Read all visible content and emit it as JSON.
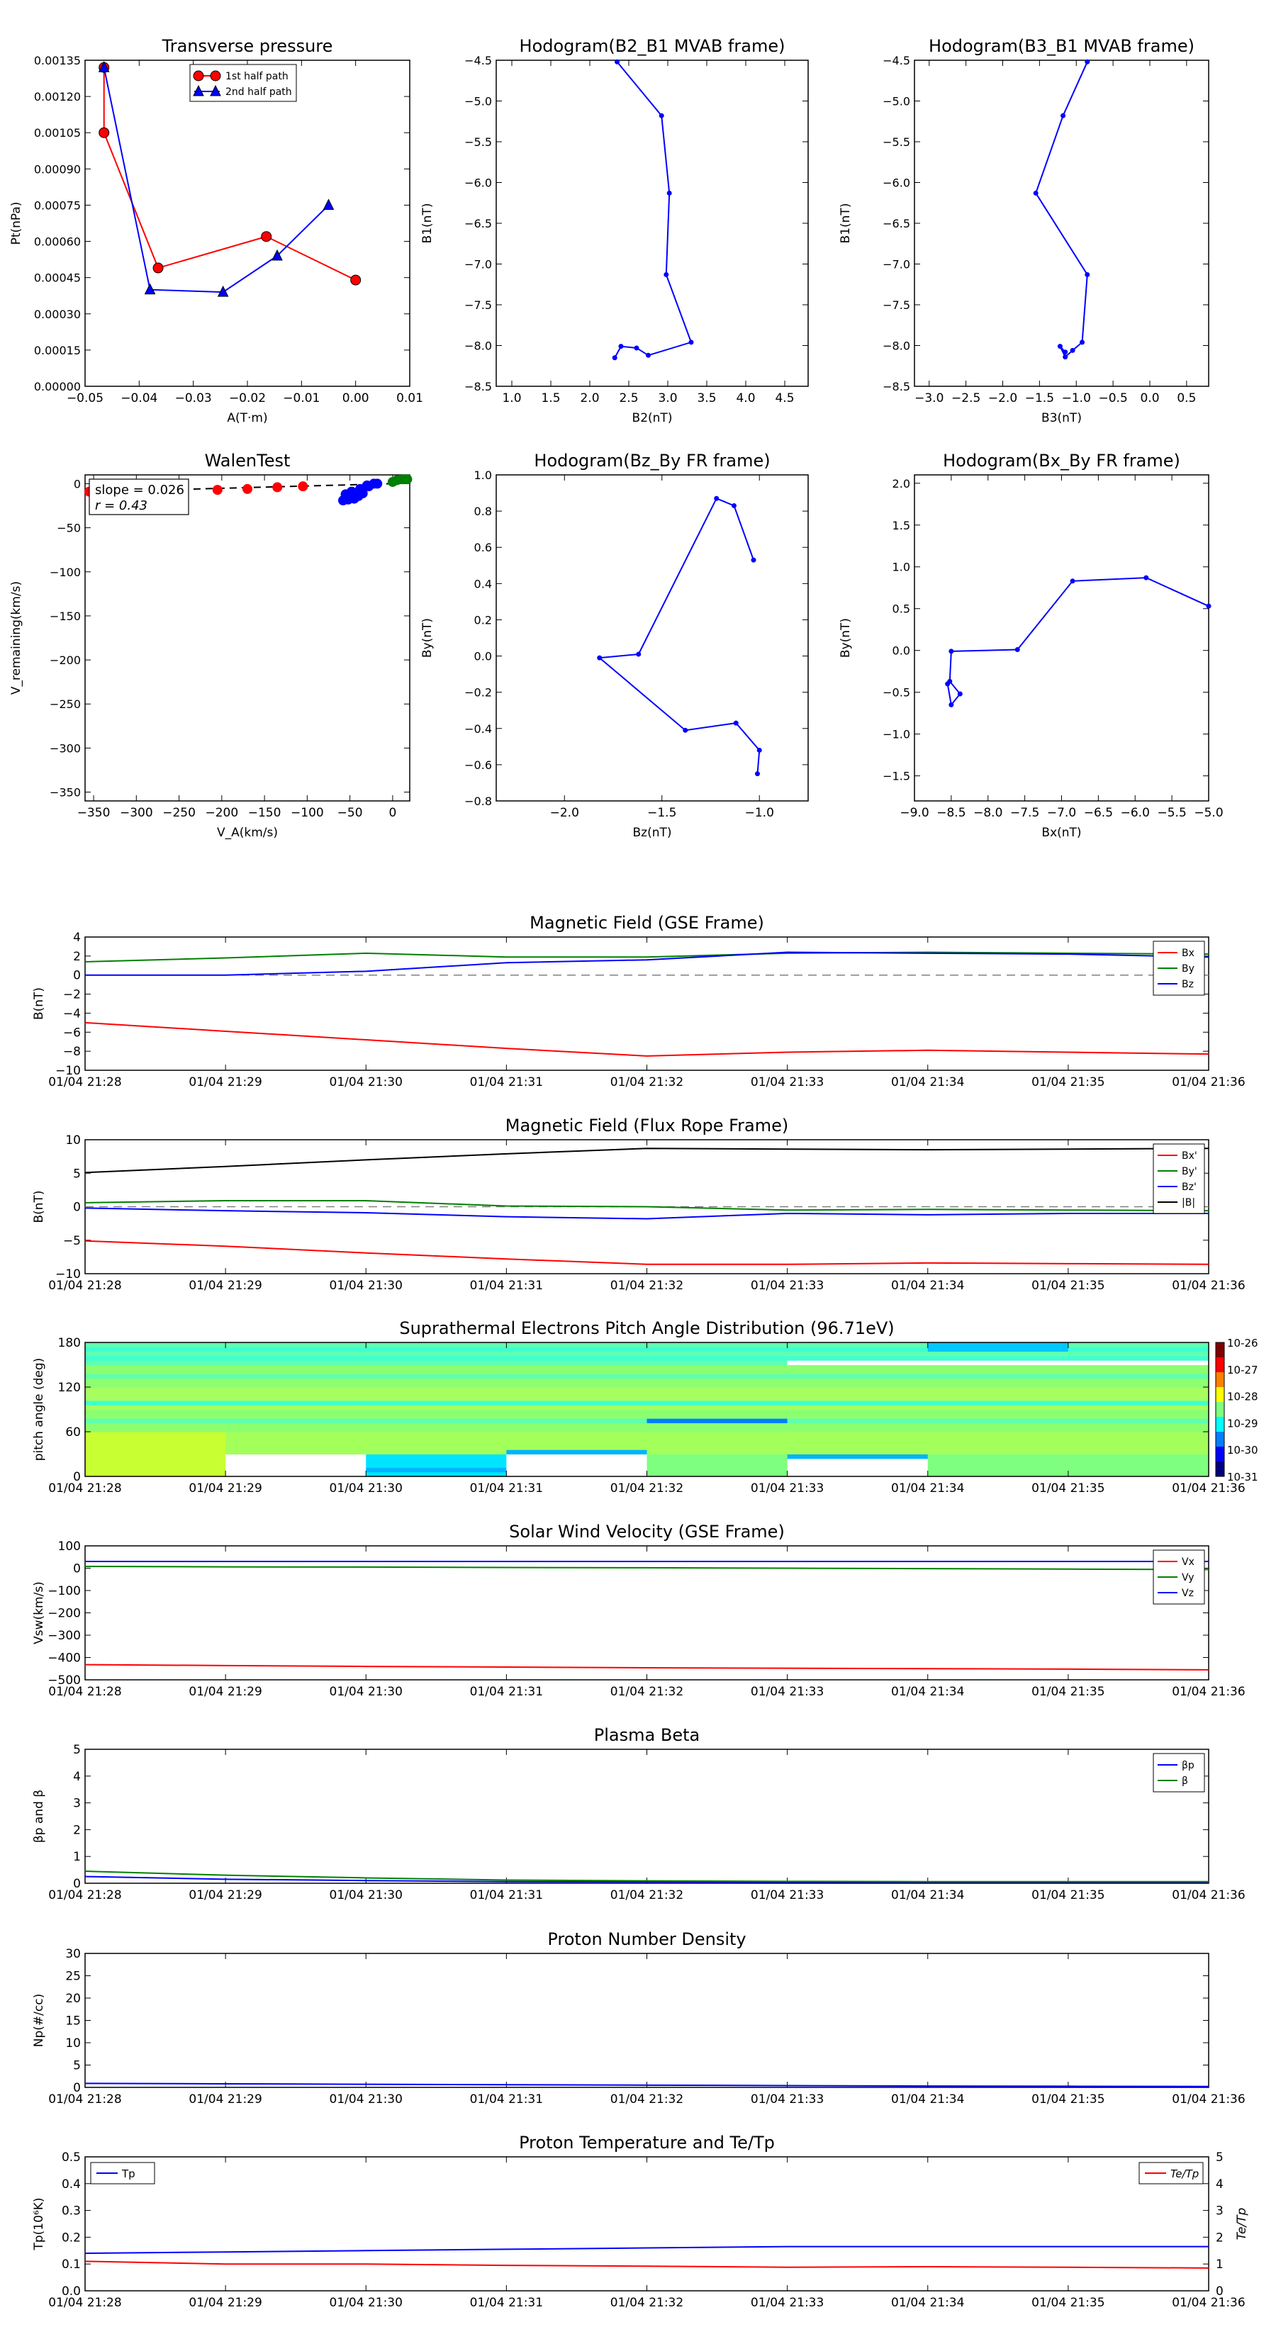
{
  "chart_data": [
    {
      "id": "transverse_pressure",
      "type": "line",
      "title": "Transverse pressure",
      "xlabel": "A(T·m)",
      "ylabel": "Pt(nPa)",
      "xlim": [
        -0.05,
        0.01
      ],
      "ylim": [
        0,
        0.00135
      ],
      "xticks": [
        -0.05,
        -0.04,
        -0.03,
        -0.02,
        -0.01,
        0.0,
        0.01
      ],
      "xtick_labels": [
        "−0.05",
        "−0.04",
        "−0.03",
        "−0.02",
        "−0.01",
        "0.00",
        "0.01"
      ],
      "yticks": [
        0,
        0.00015,
        0.0003,
        0.00045,
        0.0006,
        0.00075,
        0.0009,
        0.00105,
        0.0012,
        0.00135
      ],
      "ytick_labels": [
        "0.00000",
        "0.00015",
        "0.00030",
        "0.00045",
        "0.00060",
        "0.00075",
        "0.00090",
        "0.00105",
        "0.00120",
        "0.00135"
      ],
      "legend_position": "top-center",
      "series": [
        {
          "name": "1st half path",
          "color": "#ff0000",
          "marker": "circle",
          "x": [
            -0.0465,
            -0.0465,
            -0.0365,
            -0.0165,
            0.0
          ],
          "y": [
            0.00132,
            0.00105,
            0.00049,
            0.00062,
            0.00044
          ]
        },
        {
          "name": "2nd half path",
          "color": "#0000ff",
          "marker": "triangle",
          "x": [
            -0.0465,
            -0.038,
            -0.0245,
            -0.0145,
            -0.005
          ],
          "y": [
            0.00132,
            0.0004,
            0.00039,
            0.00054,
            0.00075
          ]
        }
      ]
    },
    {
      "id": "hodo_b2b1",
      "type": "line",
      "title": "Hodogram(B2_B1 MVAB frame)",
      "xlabel": "B2(nT)",
      "ylabel": "B1(nT)",
      "xlim": [
        0.8,
        4.8
      ],
      "ylim": [
        -8.5,
        -4.5
      ],
      "xticks": [
        1.0,
        1.5,
        2.0,
        2.5,
        3.0,
        3.5,
        4.0,
        4.5
      ],
      "xtick_labels": [
        "1.0",
        "1.5",
        "2.0",
        "2.5",
        "3.0",
        "3.5",
        "4.0",
        "4.5"
      ],
      "yticks": [
        -8.5,
        -8.0,
        -7.5,
        -7.0,
        -6.5,
        -6.0,
        -5.5,
        -5.0,
        -4.5
      ],
      "ytick_labels": [
        "−8.5",
        "−8.0",
        "−7.5",
        "−7.0",
        "−6.5",
        "−6.0",
        "−5.5",
        "−5.0",
        "−4.5"
      ],
      "series": [
        {
          "name": "",
          "color": "#0000ff",
          "marker": "dot",
          "x": [
            2.35,
            2.92,
            3.02,
            2.98,
            3.3,
            2.75,
            2.6,
            2.4,
            2.32
          ],
          "y": [
            -4.52,
            -5.18,
            -6.13,
            -7.13,
            -7.96,
            -8.12,
            -8.03,
            -8.01,
            -8.15
          ]
        }
      ]
    },
    {
      "id": "hodo_b3b1",
      "type": "line",
      "title": "Hodogram(B3_B1 MVAB frame)",
      "xlabel": "B3(nT)",
      "ylabel": "B1(nT)",
      "xlim": [
        -3.2,
        0.8
      ],
      "ylim": [
        -8.5,
        -4.5
      ],
      "xticks": [
        -3.0,
        -2.5,
        -2.0,
        -1.5,
        -1.0,
        -0.5,
        0.0,
        0.5
      ],
      "xtick_labels": [
        "−3.0",
        "−2.5",
        "−2.0",
        "−1.5",
        "−1.0",
        "−0.5",
        "0.0",
        "0.5"
      ],
      "yticks": [
        -8.5,
        -8.0,
        -7.5,
        -7.0,
        -6.5,
        -6.0,
        -5.5,
        -5.0,
        -4.5
      ],
      "ytick_labels": [
        "−8.5",
        "−8.0",
        "−7.5",
        "−7.0",
        "−6.5",
        "−6.0",
        "−5.5",
        "−5.0",
        "−4.5"
      ],
      "series": [
        {
          "name": "",
          "color": "#0000ff",
          "marker": "dot",
          "x": [
            -0.85,
            -1.18,
            -1.55,
            -0.85,
            -0.92,
            -1.05,
            -1.15,
            -1.22,
            -1.15
          ],
          "y": [
            -4.52,
            -5.18,
            -6.13,
            -7.13,
            -7.96,
            -8.06,
            -8.14,
            -8.01,
            -8.08
          ]
        }
      ]
    },
    {
      "id": "walen",
      "type": "scatter",
      "title": "WalenTest",
      "xlabel": "V_A(km/s)",
      "ylabel": "V_remaining(km/s)",
      "xlim": [
        -360,
        20
      ],
      "ylim": [
        -360,
        10
      ],
      "xticks": [
        -350,
        -300,
        -250,
        -200,
        -150,
        -100,
        -50,
        0
      ],
      "xtick_labels": [
        "−350",
        "−300",
        "−250",
        "−200",
        "−150",
        "−100",
        "−50",
        "0"
      ],
      "yticks": [
        -350,
        -300,
        -250,
        -200,
        -150,
        -100,
        -50,
        0
      ],
      "ytick_labels": [
        "−350",
        "−300",
        "−250",
        "−200",
        "−150",
        "−100",
        "−50",
        "0"
      ],
      "annotation": [
        "slope = 0.026",
        "r = 0.43"
      ],
      "fit_line": {
        "x": [
          -360,
          10
        ],
        "y": [
          -9.4,
          0.3
        ],
        "color": "#000000",
        "dash": true
      },
      "series": [
        {
          "name": "",
          "color": "#ff0000",
          "x": [
            -355,
            -205,
            -170,
            -135,
            -105
          ],
          "y": [
            -9,
            -7,
            -6,
            -4,
            -3
          ]
        },
        {
          "name": "",
          "color": "#0000ff",
          "x": [
            -58,
            -52,
            -45,
            -40,
            -35,
            -28,
            -22,
            -18,
            -55,
            -48,
            -38,
            -30
          ],
          "y": [
            -19,
            -18,
            -17,
            -14,
            -11,
            -3,
            0,
            0,
            -12,
            -9,
            -6,
            -2
          ]
        },
        {
          "name": "",
          "color": "#008000",
          "x": [
            0,
            5,
            12,
            17
          ],
          "y": [
            2,
            4,
            5,
            5
          ]
        }
      ]
    },
    {
      "id": "hodo_bzby",
      "type": "line",
      "title": "Hodogram(Bz_By FR frame)",
      "xlabel": "Bz(nT)",
      "ylabel": "By(nT)",
      "xlim": [
        -2.35,
        -0.75
      ],
      "ylim": [
        -0.8,
        1.0
      ],
      "xticks": [
        -2.0,
        -1.5,
        -1.0
      ],
      "xtick_labels": [
        "−2.0",
        "−1.5",
        "−1.0"
      ],
      "yticks": [
        -0.8,
        -0.6,
        -0.4,
        -0.2,
        0.0,
        0.2,
        0.4,
        0.6,
        0.8,
        1.0
      ],
      "ytick_labels": [
        "−0.8",
        "−0.6",
        "−0.4",
        "−0.2",
        "0.0",
        "0.2",
        "0.4",
        "0.6",
        "0.8",
        "1.0"
      ],
      "series": [
        {
          "name": "",
          "color": "#0000ff",
          "marker": "dot",
          "x": [
            -1.03,
            -1.13,
            -1.22,
            -1.62,
            -1.82,
            -1.38,
            -1.12,
            -1.0,
            -1.01
          ],
          "y": [
            0.53,
            0.83,
            0.87,
            0.01,
            -0.01,
            -0.41,
            -0.37,
            -0.52,
            -0.65
          ]
        }
      ]
    },
    {
      "id": "hodo_bxby",
      "type": "line",
      "title": "Hodogram(Bx_By FR frame)",
      "xlabel": "Bx(nT)",
      "ylabel": "By(nT)",
      "xlim": [
        -9.0,
        -5.0
      ],
      "ylim": [
        -1.8,
        2.1
      ],
      "xticks": [
        -9.0,
        -8.5,
        -8.0,
        -7.5,
        -7.0,
        -6.5,
        -6.0,
        -5.5,
        -5.0
      ],
      "xtick_labels": [
        "−9.0",
        "−8.5",
        "−8.0",
        "−7.5",
        "−7.0",
        "−6.5",
        "−6.0",
        "−5.5",
        "−5.0"
      ],
      "yticks": [
        -1.5,
        -1.0,
        -0.5,
        0.0,
        0.5,
        1.0,
        1.5,
        2.0
      ],
      "ytick_labels": [
        "−1.5",
        "−1.0",
        "−0.5",
        "0.0",
        "0.5",
        "1.0",
        "1.5",
        "2.0"
      ],
      "series": [
        {
          "name": "",
          "color": "#0000ff",
          "marker": "dot",
          "x": [
            -5.0,
            -5.85,
            -6.85,
            -7.6,
            -8.5,
            -8.52,
            -8.38,
            -8.5,
            -8.55
          ],
          "y": [
            0.53,
            0.87,
            0.83,
            0.01,
            -0.01,
            -0.37,
            -0.52,
            -0.65,
            -0.4
          ]
        }
      ]
    }
  ],
  "time_axis": {
    "ticks": [
      "01/04 21:28",
      "01/04 21:29",
      "01/04 21:30",
      "01/04 21:31",
      "01/04 21:32",
      "01/04 21:33",
      "01/04 21:34",
      "01/04 21:35",
      "01/04 21:36"
    ]
  },
  "time_panels": [
    {
      "id": "mag_gse",
      "type": "line",
      "title": "Magnetic Field (GSE Frame)",
      "ylabel": "B(nT)",
      "ylim": [
        -10,
        4
      ],
      "yticks": [
        -10,
        -8,
        -6,
        -4,
        -2,
        0,
        2,
        4
      ],
      "ytick_labels": [
        "−10",
        "−8",
        "−6",
        "−4",
        "−2",
        "0",
        "2",
        "4"
      ],
      "zero_line": true,
      "legend_position": "top-right",
      "x": [
        0,
        1,
        2,
        3,
        4,
        5,
        6,
        7,
        8
      ],
      "series": [
        {
          "name": "Bx",
          "color": "#ff0000",
          "values": [
            -5.0,
            -5.9,
            -6.8,
            -7.7,
            -8.5,
            -8.1,
            -7.9,
            -8.1,
            -8.3
          ]
        },
        {
          "name": "By",
          "color": "#008000",
          "values": [
            1.4,
            1.8,
            2.3,
            1.9,
            1.9,
            2.3,
            2.4,
            2.3,
            2.2
          ]
        },
        {
          "name": "Bz",
          "color": "#0000ff",
          "values": [
            0.0,
            0.0,
            0.4,
            1.3,
            1.6,
            2.4,
            2.3,
            2.2,
            1.9
          ]
        }
      ]
    },
    {
      "id": "mag_fr",
      "type": "line",
      "title": "Magnetic Field (Flux Rope Frame)",
      "ylabel": "B(nT)",
      "ylim": [
        -10,
        10
      ],
      "yticks": [
        -10,
        -5,
        0,
        5,
        10
      ],
      "ytick_labels": [
        "−10",
        "−5",
        "0",
        "5",
        "10"
      ],
      "zero_line": true,
      "legend_position": "top-right",
      "x": [
        0,
        1,
        2,
        3,
        4,
        5,
        6,
        7,
        8
      ],
      "series": [
        {
          "name": "Bx'",
          "color": "#ff0000",
          "values": [
            -5.1,
            -5.9,
            -6.9,
            -7.8,
            -8.6,
            -8.6,
            -8.4,
            -8.5,
            -8.6
          ]
        },
        {
          "name": "By'",
          "color": "#008000",
          "values": [
            0.6,
            0.9,
            0.9,
            0.1,
            0.0,
            -0.5,
            -0.4,
            -0.5,
            -0.6
          ]
        },
        {
          "name": "Bz'",
          "color": "#0000ff",
          "values": [
            -0.2,
            -0.6,
            -0.9,
            -1.5,
            -1.8,
            -1.0,
            -1.2,
            -1.0,
            -1.0
          ]
        },
        {
          "name": "|B|",
          "color": "#000000",
          "values": [
            5.1,
            6.0,
            7.0,
            7.9,
            8.7,
            8.6,
            8.5,
            8.6,
            8.7
          ]
        }
      ]
    },
    {
      "id": "pad",
      "type": "heatmap",
      "title": "Suprathermal Electrons Pitch Angle Distribution (96.71eV)",
      "ylabel": "pitch angle (deg)",
      "ylim": [
        0,
        180
      ],
      "yticks": [
        0,
        60,
        120,
        180
      ],
      "ytick_labels": [
        "0",
        "60",
        "120",
        "180"
      ],
      "colorbar": {
        "ticks": [
          "10-26",
          "10-27",
          "10-28",
          "10-29",
          "10-30",
          "10-31"
        ]
      }
    },
    {
      "id": "vsw",
      "type": "line",
      "title": "Solar Wind Velocity (GSE Frame)",
      "ylabel": "Vsw(km/s)",
      "ylim": [
        -500,
        100
      ],
      "yticks": [
        -500,
        -400,
        -300,
        -200,
        -100,
        0,
        100
      ],
      "ytick_labels": [
        "−500",
        "−400",
        "−300",
        "−200",
        "−100",
        "0",
        "100"
      ],
      "legend_position": "top-right",
      "x": [
        0,
        1,
        2,
        3,
        4,
        5,
        6,
        7,
        8
      ],
      "series": [
        {
          "name": "Vx",
          "color": "#ff0000",
          "values": [
            -432,
            -436,
            -440,
            -443,
            -446,
            -448,
            -450,
            -452,
            -455
          ]
        },
        {
          "name": "Vy",
          "color": "#008000",
          "values": [
            8,
            6,
            5,
            3,
            2,
            0,
            -2,
            -4,
            -6
          ]
        },
        {
          "name": "Vz",
          "color": "#0000ff",
          "values": [
            30,
            30,
            30,
            30,
            30,
            30,
            30,
            30,
            30
          ]
        }
      ]
    },
    {
      "id": "beta",
      "type": "line",
      "title": "Plasma Beta",
      "ylabel": "βp and β",
      "ylim": [
        0,
        5
      ],
      "yticks": [
        0,
        1,
        2,
        3,
        4,
        5
      ],
      "ytick_labels": [
        "0",
        "1",
        "2",
        "3",
        "4",
        "5"
      ],
      "legend_position": "top-right",
      "x": [
        0,
        1,
        2,
        3,
        4,
        5,
        6,
        7,
        8
      ],
      "series": [
        {
          "name": "βp",
          "color": "#0000ff",
          "values": [
            0.25,
            0.15,
            0.1,
            0.06,
            0.05,
            0.04,
            0.04,
            0.04,
            0.04
          ]
        },
        {
          "name": "β",
          "color": "#008000",
          "values": [
            0.45,
            0.3,
            0.2,
            0.12,
            0.09,
            0.07,
            0.06,
            0.06,
            0.06
          ]
        }
      ]
    },
    {
      "id": "np",
      "type": "line",
      "title": "Proton Number Density",
      "ylabel": "Np(#/cc)",
      "ylim": [
        0,
        30
      ],
      "yticks": [
        0,
        5,
        10,
        15,
        20,
        25,
        30
      ],
      "ytick_labels": [
        "0",
        "5",
        "10",
        "15",
        "20",
        "25",
        "30"
      ],
      "x": [
        0,
        1,
        2,
        3,
        4,
        5,
        6,
        7,
        8
      ],
      "series": [
        {
          "name": "",
          "color": "#0000ff",
          "values": [
            0.9,
            0.8,
            0.7,
            0.6,
            0.5,
            0.4,
            0.3,
            0.25,
            0.2
          ]
        }
      ]
    },
    {
      "id": "tp",
      "type": "line",
      "title": "Proton Temperature and Te/Tp",
      "ylabel": "Tp(10⁶K)",
      "ylim": [
        0,
        0.5
      ],
      "yticks": [
        0,
        0.1,
        0.2,
        0.3,
        0.4,
        0.5
      ],
      "ytick_labels": [
        "0.0",
        "0.1",
        "0.2",
        "0.3",
        "0.4",
        "0.5"
      ],
      "right_axis": {
        "label": "Te/Tp",
        "lim": [
          0,
          5
        ],
        "ticks": [
          0,
          1,
          2,
          3,
          4,
          5
        ],
        "tick_labels": [
          "0",
          "1",
          "2",
          "3",
          "4",
          "5"
        ],
        "color": "#ff0000"
      },
      "x": [
        0,
        1,
        2,
        3,
        4,
        5,
        6,
        7,
        8
      ],
      "series": [
        {
          "name": "Tp",
          "color": "#0000ff",
          "axis": "left",
          "legend_position": "top-left",
          "values": [
            0.14,
            0.145,
            0.15,
            0.155,
            0.16,
            0.165,
            0.165,
            0.165,
            0.165
          ]
        },
        {
          "name": "Te/Tp",
          "color": "#ff0000",
          "axis": "right",
          "legend_position": "top-right",
          "values": [
            1.1,
            1.0,
            1.0,
            0.95,
            0.92,
            0.88,
            0.9,
            0.88,
            0.85
          ]
        }
      ]
    }
  ]
}
